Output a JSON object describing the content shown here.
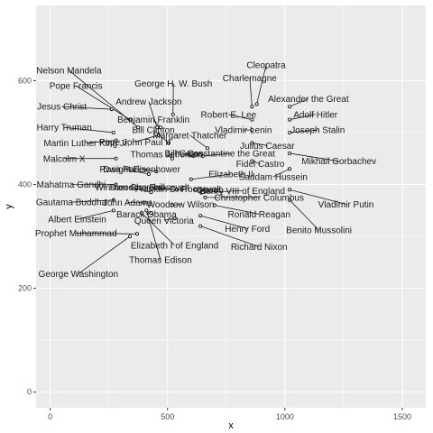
{
  "chart_data": {
    "type": "scatter",
    "title": "",
    "xlabel": "x",
    "ylabel": "y",
    "xlim": [
      -60,
      1600
    ],
    "ylim": [
      -30,
      745
    ],
    "x_ticks": [
      0,
      500,
      1000,
      1500
    ],
    "y_ticks": [
      0,
      200,
      400,
      600
    ],
    "x_tick_labels": [
      "0",
      "500",
      "1000",
      "1500"
    ],
    "y_tick_labels": [
      "0",
      "200",
      "400",
      "600"
    ],
    "grid": true,
    "legend": "none",
    "colors": {
      "panel": "#ebebeb",
      "grid": "#ffffff",
      "point": "#000000"
    },
    "points": [
      {
        "name": "Nelson Mandela",
        "x": 375,
        "y": 510,
        "lx": 80,
        "ly": 620
      },
      {
        "name": "Pope Francis",
        "x": 340,
        "y": 525,
        "lx": 110,
        "ly": 590
      },
      {
        "name": "Jesus Christ",
        "x": 262,
        "y": 545,
        "lx": 50,
        "ly": 550
      },
      {
        "name": "Harry Truman",
        "x": 270,
        "y": 500,
        "lx": 60,
        "ly": 510
      },
      {
        "name": "Martin Luther King Jr.",
        "x": 280,
        "y": 485,
        "lx": 155,
        "ly": 480
      },
      {
        "name": "Malcolm X",
        "x": 280,
        "y": 450,
        "lx": 60,
        "ly": 450
      },
      {
        "name": "Mahatma Gandhi",
        "x": 280,
        "y": 400,
        "lx": 90,
        "ly": 400
      },
      {
        "name": "Gautama Buddha",
        "x": 270,
        "y": 370,
        "lx": 90,
        "ly": 366
      },
      {
        "name": "Albert Einstein",
        "x": 270,
        "y": 350,
        "lx": 115,
        "ly": 333
      },
      {
        "name": "Prophet Muhammad",
        "x": 370,
        "y": 305,
        "lx": 110,
        "ly": 306
      },
      {
        "name": "George Washington",
        "x": 340,
        "y": 300,
        "lx": 120,
        "ly": 228
      },
      {
        "name": "George H. W. Bush",
        "x": 523,
        "y": 535,
        "lx": 525,
        "ly": 595
      },
      {
        "name": "Andrew Jackson",
        "x": 455,
        "y": 510,
        "lx": 420,
        "ly": 560
      },
      {
        "name": "Benjamin Franklin",
        "x": 470,
        "y": 510,
        "lx": 440,
        "ly": 525
      },
      {
        "name": "Bill Clinton",
        "x": 505,
        "y": 480,
        "lx": 440,
        "ly": 505
      },
      {
        "name": "Pope John Paul II",
        "x": 462,
        "y": 495,
        "lx": 360,
        "ly": 482
      },
      {
        "name": "Thomas Jefferson",
        "x": 520,
        "y": 450,
        "lx": 495,
        "ly": 458
      },
      {
        "name": "Rosa Parks",
        "x": 420,
        "y": 420,
        "lx": 310,
        "ly": 430
      },
      {
        "name": "Dwight Eisenhower",
        "x": 452,
        "y": 425,
        "lx": 390,
        "ly": 430
      },
      {
        "name": "Winston Churchill",
        "x": 430,
        "y": 385,
        "lx": 340,
        "ly": 395
      },
      {
        "name": "John Adams",
        "x": 400,
        "y": 365,
        "lx": 330,
        "ly": 365
      },
      {
        "name": "Barack Obama",
        "x": 430,
        "y": 345,
        "lx": 410,
        "ly": 343
      },
      {
        "name": "Elizabeth I of England",
        "x": 390,
        "y": 345,
        "lx": 530,
        "ly": 283
      },
      {
        "name": "Thomas Edison",
        "x": 410,
        "y": 350,
        "lx": 470,
        "ly": 255
      },
      {
        "name": "Theodore Roosevelt",
        "x": 540,
        "y": 390,
        "lx": 420,
        "ly": 395
      },
      {
        "name": "Franklin D. Roosevelt",
        "x": 560,
        "y": 390,
        "lx": 545,
        "ly": 391
      },
      {
        "name": "Woodrow Wilson",
        "x": 520,
        "y": 360,
        "lx": 555,
        "ly": 362
      },
      {
        "name": "Queen Victoria",
        "x": 530,
        "y": 335,
        "lx": 485,
        "ly": 331
      },
      {
        "name": "Margaret Thatcher",
        "x": 670,
        "y": 470,
        "lx": 595,
        "ly": 495
      },
      {
        "name": "Bill Gates",
        "x": 610,
        "y": 455,
        "lx": 570,
        "ly": 460
      },
      {
        "name": "Constantine the Great",
        "x": 650,
        "y": 455,
        "lx": 770,
        "ly": 460
      },
      {
        "name": "Elizabeth II",
        "x": 600,
        "y": 410,
        "lx": 770,
        "ly": 420
      },
      {
        "name": "Queen",
        "x": 620,
        "y": 390,
        "lx": 680,
        "ly": 390
      },
      {
        "name": "Henry VIII of England",
        "x": 650,
        "y": 385,
        "lx": 818,
        "ly": 388
      },
      {
        "name": "Christopher Columbus",
        "x": 660,
        "y": 375,
        "lx": 890,
        "ly": 375
      },
      {
        "name": "Ronald Reagan",
        "x": 700,
        "y": 360,
        "lx": 890,
        "ly": 343
      },
      {
        "name": "Henry Ford",
        "x": 640,
        "y": 340,
        "lx": 840,
        "ly": 315
      },
      {
        "name": "Richard Nixon",
        "x": 640,
        "y": 320,
        "lx": 890,
        "ly": 280
      },
      {
        "name": "Cleopatra",
        "x": 880,
        "y": 555,
        "lx": 920,
        "ly": 630
      },
      {
        "name": "Charlemagne",
        "x": 860,
        "y": 550,
        "lx": 850,
        "ly": 605
      },
      {
        "name": "Alexander the Great",
        "x": 1020,
        "y": 550,
        "lx": 1100,
        "ly": 565
      },
      {
        "name": "Robert E. Lee",
        "x": 860,
        "y": 525,
        "lx": 760,
        "ly": 535
      },
      {
        "name": "Adolf Hitler",
        "x": 1020,
        "y": 525,
        "lx": 1130,
        "ly": 535
      },
      {
        "name": "Vladimir Lenin",
        "x": 860,
        "y": 505,
        "lx": 823,
        "ly": 505
      },
      {
        "name": "Joseph Stalin",
        "x": 1020,
        "y": 500,
        "lx": 1140,
        "ly": 505
      },
      {
        "name": "Julius Caesar",
        "x": 860,
        "y": 480,
        "lx": 925,
        "ly": 475
      },
      {
        "name": "Fidel Castro",
        "x": 860,
        "y": 445,
        "lx": 895,
        "ly": 440
      },
      {
        "name": "Mikhail Gorbachev",
        "x": 1020,
        "y": 460,
        "lx": 1230,
        "ly": 445
      },
      {
        "name": "Saddam Hussein",
        "x": 1020,
        "y": 430,
        "lx": 950,
        "ly": 415
      },
      {
        "name": "Vladimir Putin",
        "x": 1020,
        "y": 390,
        "lx": 1260,
        "ly": 362
      },
      {
        "name": "Benito Mussolini",
        "x": 1020,
        "y": 370,
        "lx": 1145,
        "ly": 312
      }
    ]
  }
}
